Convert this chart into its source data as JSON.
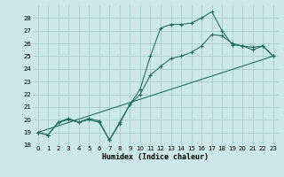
{
  "xlabel": "Humidex (Indice chaleur)",
  "bg_color": "#cce8e8",
  "grid_color": "#aacccc",
  "line_color": "#1a6b5a",
  "xlim": [
    -0.5,
    23.5
  ],
  "ylim": [
    18,
    29
  ],
  "xticks": [
    0,
    1,
    2,
    3,
    4,
    5,
    6,
    7,
    8,
    9,
    10,
    11,
    12,
    13,
    14,
    15,
    16,
    17,
    18,
    19,
    20,
    21,
    22,
    23
  ],
  "yticks": [
    18,
    19,
    20,
    21,
    22,
    23,
    24,
    25,
    26,
    27,
    28
  ],
  "line1_x": [
    0,
    1,
    2,
    3,
    4,
    5,
    6,
    7,
    8,
    9,
    10,
    11,
    12,
    13,
    14,
    15,
    16,
    17,
    18,
    19,
    20,
    21,
    22,
    23
  ],
  "line1_y": [
    19.0,
    18.8,
    19.8,
    20.1,
    19.8,
    20.1,
    19.9,
    18.4,
    19.8,
    21.2,
    22.4,
    25.0,
    27.2,
    27.5,
    27.5,
    27.6,
    28.0,
    28.5,
    27.0,
    25.9,
    25.8,
    25.7,
    25.8,
    25.0
  ],
  "line2_x": [
    0,
    1,
    2,
    3,
    4,
    5,
    6,
    7,
    8,
    9,
    10,
    11,
    12,
    13,
    14,
    15,
    16,
    17,
    18,
    19,
    20,
    21,
    22,
    23
  ],
  "line2_y": [
    19.0,
    18.8,
    19.8,
    20.0,
    19.8,
    20.0,
    19.8,
    18.4,
    19.7,
    21.2,
    22.0,
    23.5,
    24.2,
    24.8,
    25.0,
    25.3,
    25.8,
    26.7,
    26.6,
    26.0,
    25.8,
    25.5,
    25.8,
    25.0
  ],
  "line3_x": [
    0,
    23
  ],
  "line3_y": [
    19.0,
    25.0
  ]
}
